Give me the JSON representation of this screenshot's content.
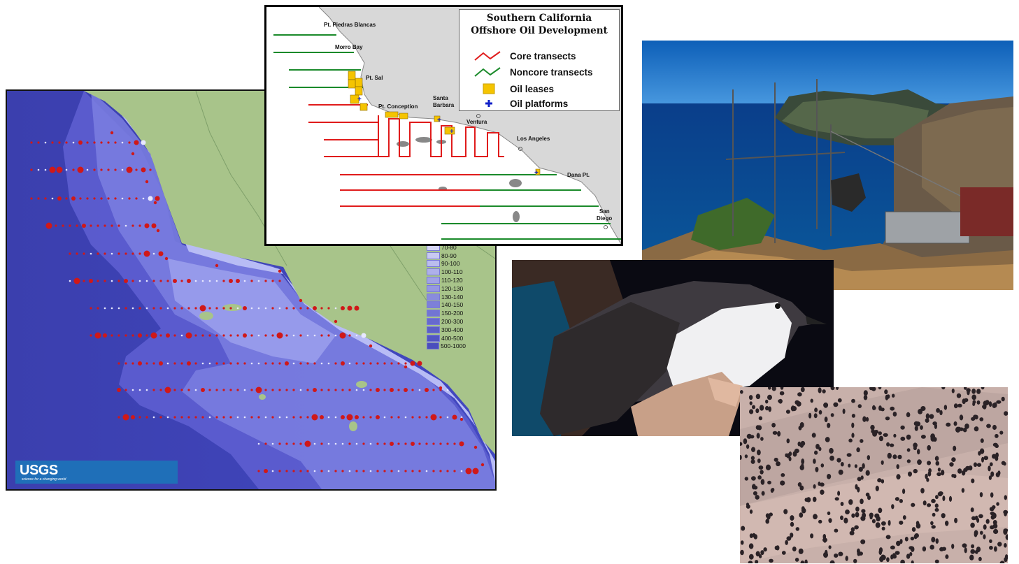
{
  "depth_legend": [
    "70-80",
    "80-90",
    "90-100",
    "100-110",
    "110-120",
    "120-130",
    "130-140",
    "140-150",
    "150-200",
    "200-300",
    "300-400",
    "400-500",
    "500-1000"
  ],
  "usgs": {
    "logo": "USGS",
    "tagline": "science for a changing world"
  },
  "inset": {
    "title_line1": "Southern California",
    "title_line2": "Offshore Oil Development",
    "legend": [
      {
        "label": "Core transects",
        "color": "#e01b1b",
        "icon": "zigzag-line-icon"
      },
      {
        "label": "Noncore transects",
        "color": "#1a8a2a",
        "icon": "zigzag-line-icon"
      },
      {
        "label": "Oil leases",
        "color": "#f5c400",
        "icon": "square-swatch-icon"
      },
      {
        "label": "Oil platforms",
        "color": "#1020c8",
        "icon": "plus-icon"
      }
    ],
    "places": [
      "Pt. Piedras Blancas",
      "Morro Bay",
      "Pt. Sal",
      "Pt. Conception",
      "Santa",
      "Barbara",
      "Ventura",
      "Los Angeles",
      "Dana Pt.",
      "San",
      "Diego"
    ]
  },
  "photos": [
    {
      "subject": "coastal cliff with radio telemetry antenna"
    },
    {
      "subject": "hand holding a seabird"
    },
    {
      "subject": "aerial view of nesting seabird colony"
    }
  ]
}
